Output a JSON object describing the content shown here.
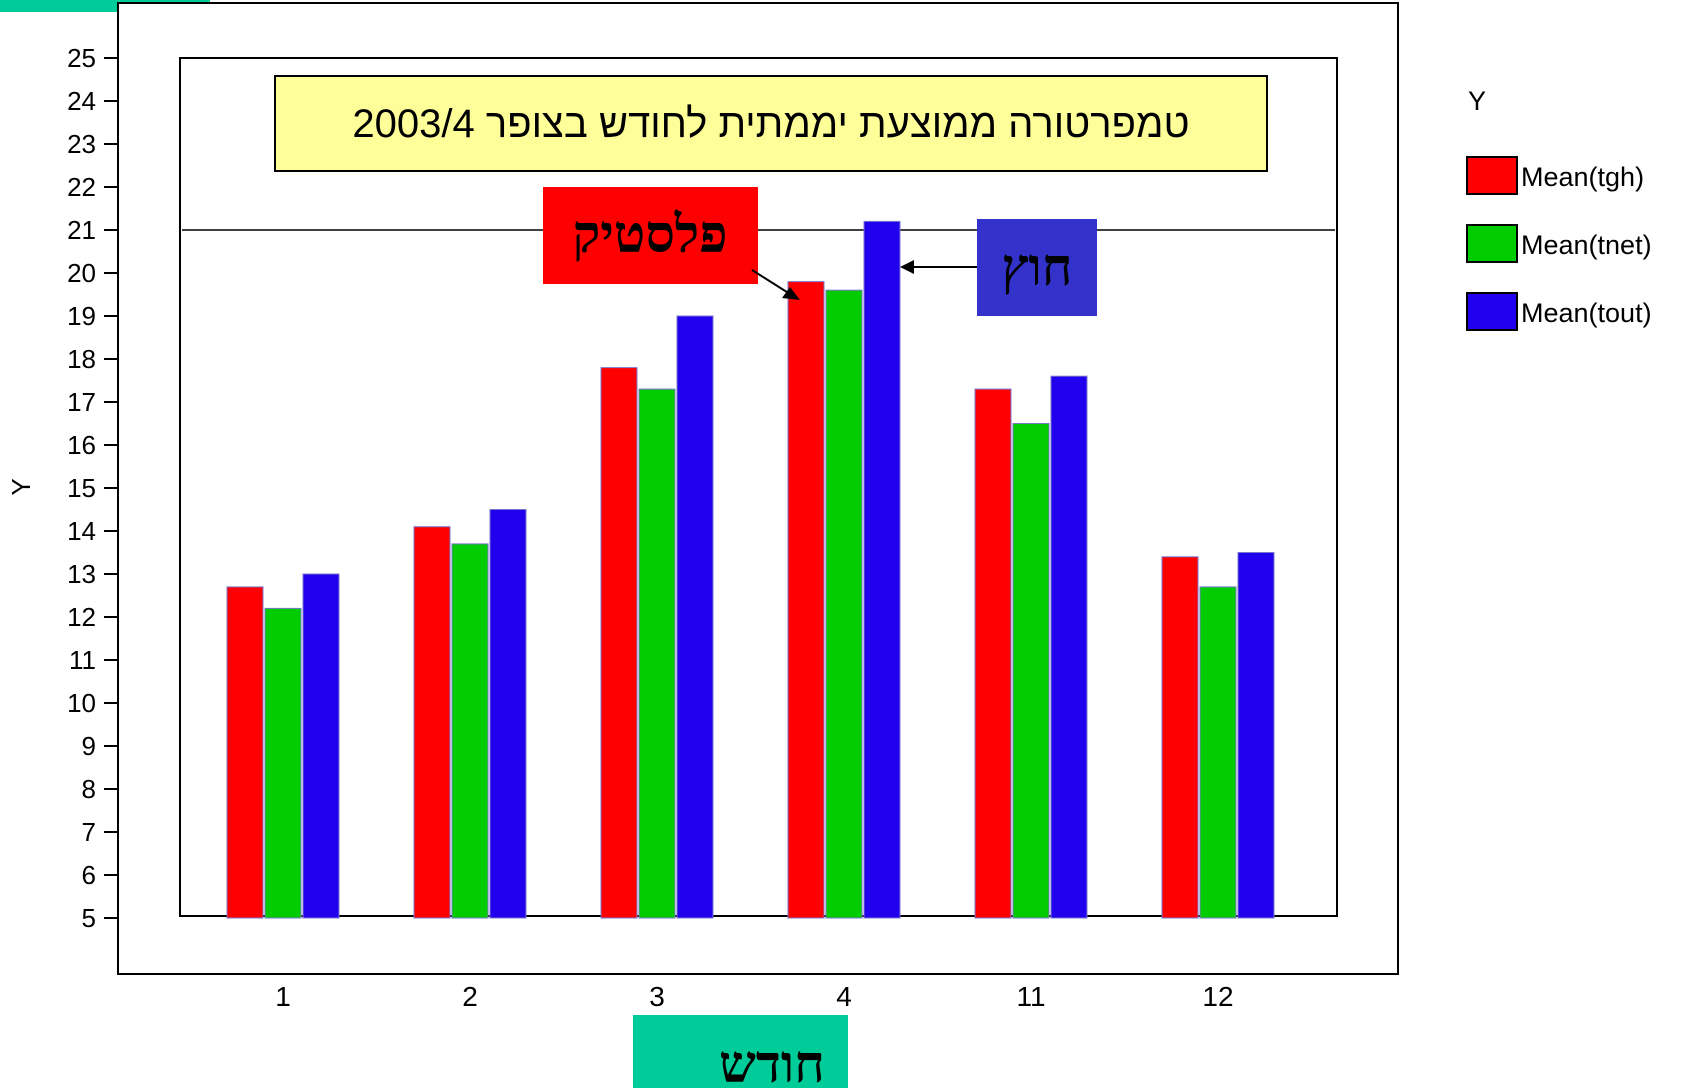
{
  "chart_data": {
    "type": "bar",
    "title": "טמפרטורה ממוצעת יממתית לחודש בצופר 2003/4",
    "xlabel": "חודש",
    "ylabel": "Y",
    "legend_title": "Y",
    "legend_position": "right",
    "grid": false,
    "categories": [
      "1",
      "2",
      "3",
      "4",
      "11",
      "12"
    ],
    "ylim": [
      5,
      25
    ],
    "yticks": [
      5,
      6,
      7,
      8,
      9,
      10,
      11,
      12,
      13,
      14,
      15,
      16,
      17,
      18,
      19,
      20,
      21,
      22,
      23,
      24,
      25
    ],
    "reference_line": 21,
    "series": [
      {
        "name": "Mean(tgh)",
        "color": "#ff0000",
        "values": [
          12.7,
          14.1,
          17.8,
          19.8,
          17.3,
          13.4
        ]
      },
      {
        "name": "Mean(tnet)",
        "color": "#00cc00",
        "values": [
          12.2,
          13.7,
          17.3,
          19.6,
          16.5,
          12.7
        ]
      },
      {
        "name": "Mean(tout)",
        "color": "#2200ee",
        "values": [
          13.0,
          14.5,
          19.0,
          21.2,
          17.6,
          13.5
        ]
      }
    ],
    "annotations": [
      {
        "text": "פלסטיק",
        "background": "#ff0000",
        "points_to": "Mean(tgh) at 4"
      },
      {
        "text": "חוץ",
        "background": "#3333cc",
        "points_to": "Mean(tout) at 4"
      }
    ]
  },
  "colors": {
    "title_box": "#ffff99",
    "xlabel_box": "#00cc99",
    "corner_tab": "#00cc99"
  }
}
